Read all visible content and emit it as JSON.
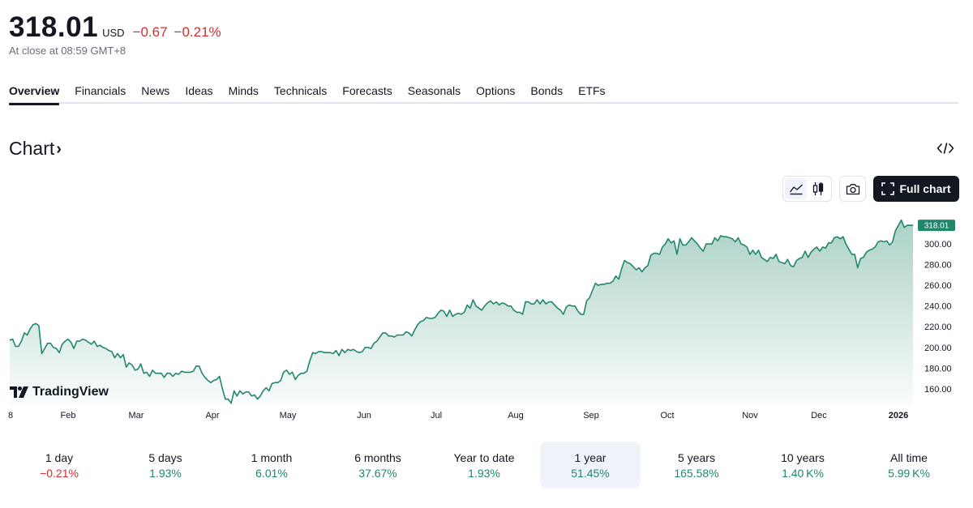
{
  "quote": {
    "price": "318.01",
    "currency": "USD",
    "change": "−0.67",
    "change_pct": "−0.21%",
    "close_note": "At close at 08:59 GMT+8",
    "color_negative": "#d32f2f",
    "color_positive": "#22866d"
  },
  "tabs": [
    "Overview",
    "Financials",
    "News",
    "Ideas",
    "Minds",
    "Technicals",
    "Forecasts",
    "Seasonals",
    "Options",
    "Bonds",
    "ETFs"
  ],
  "chart_section": {
    "title": "Chart",
    "chevron": "›",
    "embed_icon": "code-embed-icon",
    "full_chart_label": "Full chart",
    "logo_text": "TradingView"
  },
  "chart_data": {
    "type": "area",
    "line_color": "#22866d",
    "last_value_label": "318.01",
    "ylim": [
      145,
      322
    ],
    "y_ticks": [
      "300.00",
      "280.00",
      "260.00",
      "240.00",
      "220.00",
      "200.00",
      "180.00",
      "160.00"
    ],
    "x_ticks": [
      "8",
      "Feb",
      "Mar",
      "Apr",
      "May",
      "Jun",
      "Jul",
      "Aug",
      "Sep",
      "Oct",
      "Nov",
      "Dec",
      "2026"
    ],
    "grid": false,
    "values": [
      207,
      208,
      201,
      201,
      206,
      214,
      212,
      218,
      222,
      223,
      221,
      194,
      199,
      204,
      204,
      200,
      199,
      195,
      203,
      206,
      208,
      205,
      199,
      206,
      206,
      208,
      207,
      205,
      203,
      206,
      201,
      202,
      200,
      199,
      197,
      196,
      190,
      194,
      190,
      193,
      181,
      185,
      183,
      178,
      179,
      184,
      175,
      176,
      172,
      178,
      175,
      175,
      175,
      171,
      175,
      175,
      172,
      175,
      174,
      177,
      176,
      176,
      176,
      177,
      182,
      182,
      175,
      171,
      168,
      166,
      168,
      169,
      172,
      160,
      150,
      150,
      146,
      158,
      153,
      158,
      155,
      157,
      157,
      153,
      154,
      150,
      153,
      158,
      161,
      158,
      165,
      166,
      166,
      168,
      176,
      178,
      174,
      176,
      169,
      173,
      175,
      175,
      177,
      187,
      195,
      194,
      196,
      196,
      195,
      195,
      195,
      194,
      197,
      192,
      198,
      195,
      198,
      197,
      198,
      196,
      195,
      196,
      200,
      200,
      199,
      204,
      206,
      210,
      214,
      214,
      211,
      211,
      210,
      212,
      212,
      212,
      215,
      214,
      211,
      217,
      222,
      225,
      226,
      229,
      228,
      228,
      229,
      233,
      236,
      235,
      230,
      236,
      230,
      232,
      233,
      232,
      234,
      241,
      238,
      246,
      240,
      238,
      236,
      240,
      243,
      245,
      242,
      244,
      241,
      243,
      242,
      240,
      240,
      236,
      234,
      234,
      232,
      244,
      244,
      242,
      242,
      246,
      242,
      246,
      242,
      244,
      244,
      241,
      238,
      236,
      232,
      239,
      241,
      240,
      240,
      235,
      232,
      232,
      245,
      248,
      255,
      262,
      260,
      261,
      261,
      262,
      262,
      264,
      269,
      266,
      276,
      284,
      282,
      281,
      278,
      275,
      277,
      273,
      277,
      279,
      289,
      291,
      291,
      290,
      297,
      300,
      305,
      301,
      303,
      290,
      305,
      299,
      299,
      302,
      306,
      303,
      300,
      296,
      293,
      300,
      300,
      300,
      306,
      303,
      308,
      307,
      307,
      306,
      305,
      302,
      306,
      300,
      299,
      297,
      290,
      294,
      290,
      294,
      287,
      285,
      283,
      287,
      286,
      290,
      283,
      282,
      281,
      285,
      279,
      278,
      284,
      286,
      287,
      293,
      287,
      292,
      295,
      297,
      293,
      297,
      296,
      301,
      301,
      306,
      307,
      305,
      307,
      300,
      295,
      290,
      290,
      277,
      286,
      287,
      292,
      294,
      295,
      297,
      302,
      303,
      302,
      303,
      299,
      302,
      313,
      318,
      323,
      316,
      318,
      318,
      318
    ]
  },
  "periods": [
    {
      "label": "1 day",
      "value": "−0.21%",
      "sign": "neg"
    },
    {
      "label": "5 days",
      "value": "1.93%",
      "sign": "pos"
    },
    {
      "label": "1 month",
      "value": "6.01%",
      "sign": "pos"
    },
    {
      "label": "6 months",
      "value": "37.67%",
      "sign": "pos"
    },
    {
      "label": "Year to date",
      "value": "1.93%",
      "sign": "pos"
    },
    {
      "label": "1 year",
      "value": "51.45%",
      "sign": "pos",
      "active": true
    },
    {
      "label": "5 years",
      "value": "165.58%",
      "sign": "pos"
    },
    {
      "label": "10 years",
      "value": "1.40 K%",
      "sign": "pos"
    },
    {
      "label": "All time",
      "value": "5.99 K%",
      "sign": "pos"
    }
  ]
}
